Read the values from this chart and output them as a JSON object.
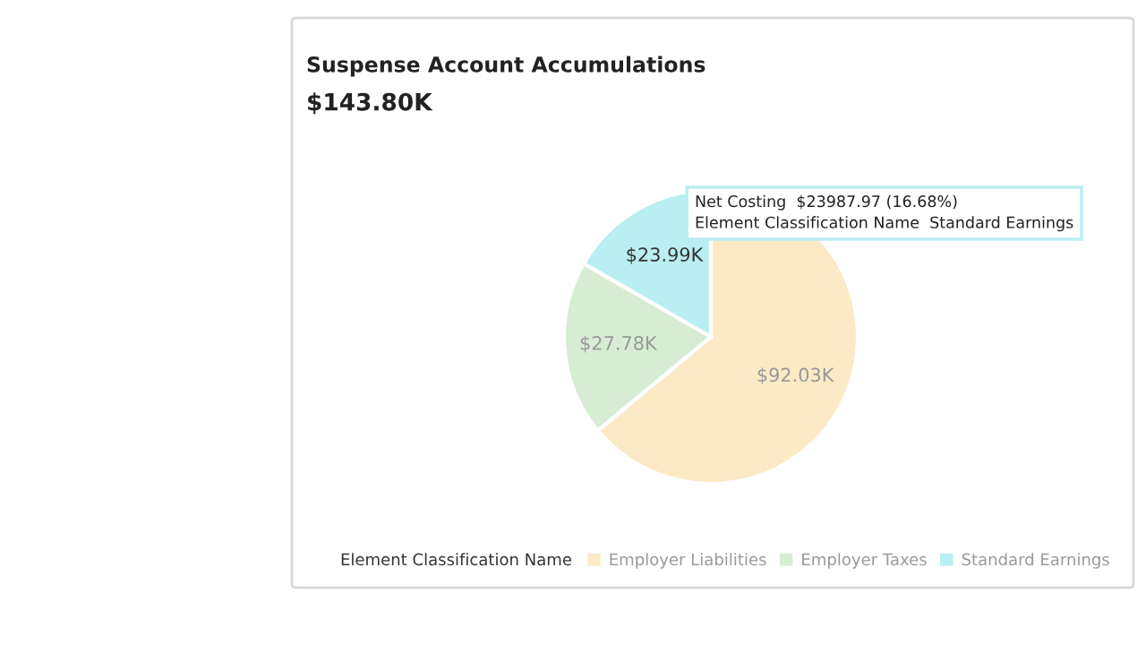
{
  "chart_data": {
    "type": "pie",
    "title": "Suspense Account Accumulations",
    "subtitle": "$143.80K",
    "categories": [
      "Employer Liabilities",
      "Employer Taxes",
      "Standard Earnings"
    ],
    "values": [
      92.03,
      27.78,
      23.99
    ],
    "colors": [
      "#fce9c6",
      "#d6edd3",
      "#b9eef2"
    ],
    "value_labels": [
      "$92.03K",
      "$27.78K",
      "$23.99K"
    ],
    "legend_title": "Element Classification Name",
    "legend": "bottom",
    "annotations": [
      "Net Costing  $23987.97 (16.68%)",
      "Element Classification Name  Standard Earnings"
    ]
  }
}
